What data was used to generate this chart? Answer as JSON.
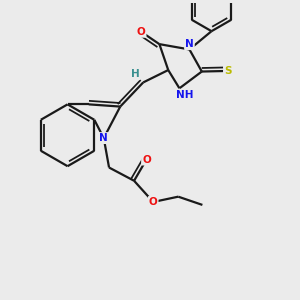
{
  "bg": "#ebebeb",
  "bond_color": "#1a1a1a",
  "lw": 1.6,
  "dbo": 0.12,
  "atom_colors": {
    "N": "#1515ee",
    "O": "#ee1111",
    "S": "#bbbb00",
    "H": "#3a9090"
  },
  "fs": 7.5
}
